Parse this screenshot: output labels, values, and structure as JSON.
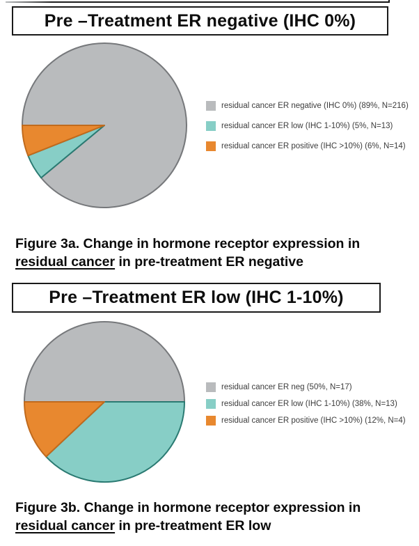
{
  "artifact": {
    "note": "partially cropped element edge at top of screenshot"
  },
  "colors": {
    "gray_fill": "#b9bbbd",
    "gray_stroke": "#76787b",
    "teal_fill": "#87cec6",
    "teal_stroke": "#2a7a72",
    "orange_fill": "#e8882f",
    "orange_stroke": "#c06a1d",
    "border_black": "#1a1a1a"
  },
  "figure_a": {
    "title": "Pre –Treatment ER negative (IHC 0%)",
    "caption_line1": "Figure 3a. Change in hormone receptor expression in",
    "caption_underlined": "residual cancer",
    "caption_line2_rest": " in pre-treatment ER negative"
  },
  "figure_b": {
    "title": "Pre –Treatment ER low (IHC 1-10%)",
    "caption_line1": "Figure 3b. Change in hormone receptor expression in",
    "caption_underlined": "residual cancer",
    "caption_line2_rest": " in pre-treatment ER low"
  },
  "chart_data": [
    {
      "type": "pie",
      "title": "Pre –Treatment ER negative (IHC 0%)",
      "start_angle_deg": 270,
      "direction": "clockwise",
      "legend_position": "right",
      "slices": [
        {
          "key": "er-negative",
          "label": "residual cancer ER negative (IHC 0%) (89%, N=216)",
          "value": 89,
          "n": 216,
          "color": "#b9bbbd",
          "stroke": "#76787b"
        },
        {
          "key": "er-low",
          "label": "residual cancer ER low (IHC 1-10%) (5%, N=13)",
          "value": 5,
          "n": 13,
          "color": "#87cec6",
          "stroke": "#2a7a72"
        },
        {
          "key": "er-positive",
          "label": "residual cancer ER positive (IHC >10%) (6%, N=14)",
          "value": 6,
          "n": 14,
          "color": "#e8882f",
          "stroke": "#c06a1d"
        }
      ]
    },
    {
      "type": "pie",
      "title": "Pre –Treatment ER low (IHC 1-10%)",
      "start_angle_deg": 270,
      "direction": "clockwise",
      "legend_position": "right",
      "slices": [
        {
          "key": "er-negative",
          "label": "residual cancer ER neg (50%, N=17)",
          "value": 50,
          "n": 17,
          "color": "#b9bbbd",
          "stroke": "#76787b"
        },
        {
          "key": "er-low",
          "label": "residual cancer ER low (IHC 1-10%) (38%, N=13)",
          "value": 38,
          "n": 13,
          "color": "#87cec6",
          "stroke": "#2a7a72"
        },
        {
          "key": "er-positive",
          "label": "residual cancer ER positive (IHC >10%) (12%, N=4)",
          "value": 12,
          "n": 4,
          "color": "#e8882f",
          "stroke": "#c06a1d"
        }
      ]
    }
  ]
}
